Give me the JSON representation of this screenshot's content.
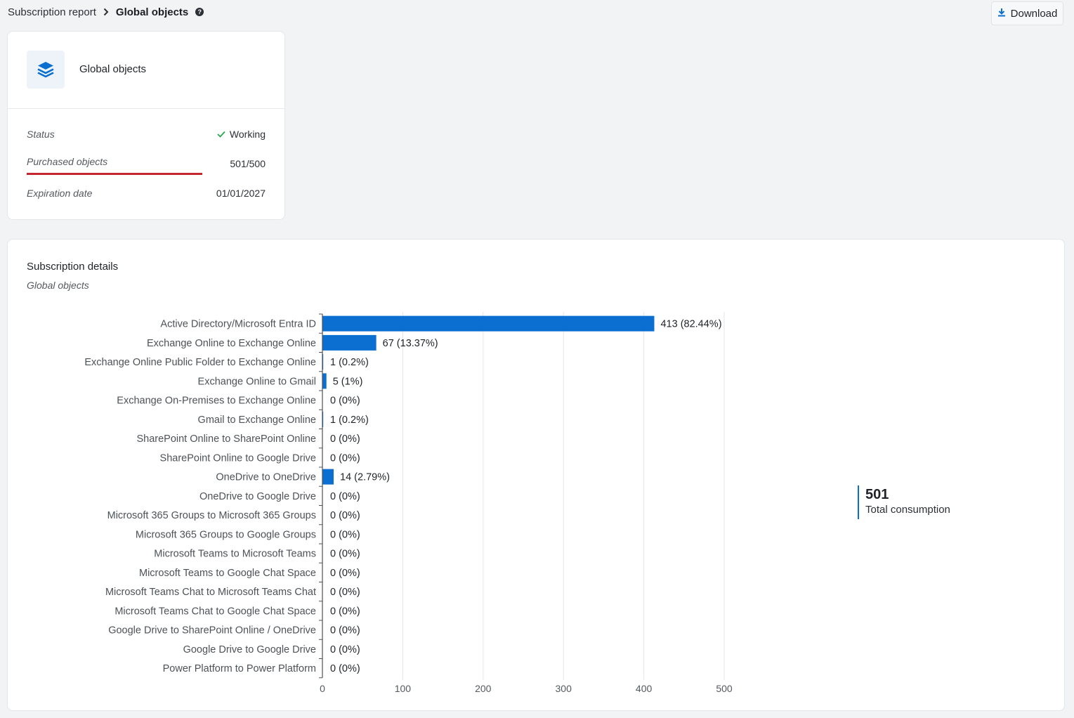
{
  "breadcrumb": {
    "parent": "Subscription report",
    "current": "Global objects",
    "help": "?"
  },
  "toolbar": {
    "download_label": "Download"
  },
  "summary": {
    "icon": "layers-icon",
    "title": "Global objects",
    "status_label": "Status",
    "status_value": "Working",
    "purchased_label": "Purchased objects",
    "purchased_value": "501/500",
    "expiration_label": "Expiration date",
    "expiration_value": "01/01/2027"
  },
  "details": {
    "title": "Subscription details",
    "subtitle": "Global objects",
    "total_value": "501",
    "total_label": "Total consumption"
  },
  "colors": {
    "bar": "#0a6fd1",
    "alert": "#c4262e",
    "check": "#2da44e"
  },
  "chart_data": {
    "type": "bar",
    "orientation": "horizontal",
    "categories": [
      "Active Directory/Microsoft Entra ID",
      "Exchange Online to Exchange Online",
      "Exchange Online Public Folder to Exchange Online",
      "Exchange Online to Gmail",
      "Exchange On-Premises to Exchange Online",
      "Gmail to Exchange Online",
      "SharePoint Online to SharePoint Online",
      "SharePoint Online to Google Drive",
      "OneDrive to OneDrive",
      "OneDrive to Google Drive",
      "Microsoft 365 Groups to Microsoft 365 Groups",
      "Microsoft 365 Groups to Google Groups",
      "Microsoft Teams to Microsoft Teams",
      "Microsoft Teams to Google Chat Space",
      "Microsoft Teams Chat to Microsoft Teams Chat",
      "Microsoft Teams Chat to Google Chat Space",
      "Google Drive to SharePoint Online / OneDrive",
      "Google Drive to Google Drive",
      "Power Platform to Power Platform"
    ],
    "values": [
      413,
      67,
      1,
      5,
      0,
      1,
      0,
      0,
      14,
      0,
      0,
      0,
      0,
      0,
      0,
      0,
      0,
      0,
      0
    ],
    "data_labels": [
      "413 (82.44%)",
      "67 (13.37%)",
      "1 (0.2%)",
      "5 (1%)",
      "0 (0%)",
      "1 (0.2%)",
      "0 (0%)",
      "0 (0%)",
      "14 (2.79%)",
      "0 (0%)",
      "0 (0%)",
      "0 (0%)",
      "0 (0%)",
      "0 (0%)",
      "0 (0%)",
      "0 (0%)",
      "0 (0%)",
      "0 (0%)",
      "0 (0%)"
    ],
    "xlim": [
      0,
      500
    ],
    "xticks": [
      0,
      100,
      200,
      300,
      400,
      500
    ],
    "grid": true
  }
}
